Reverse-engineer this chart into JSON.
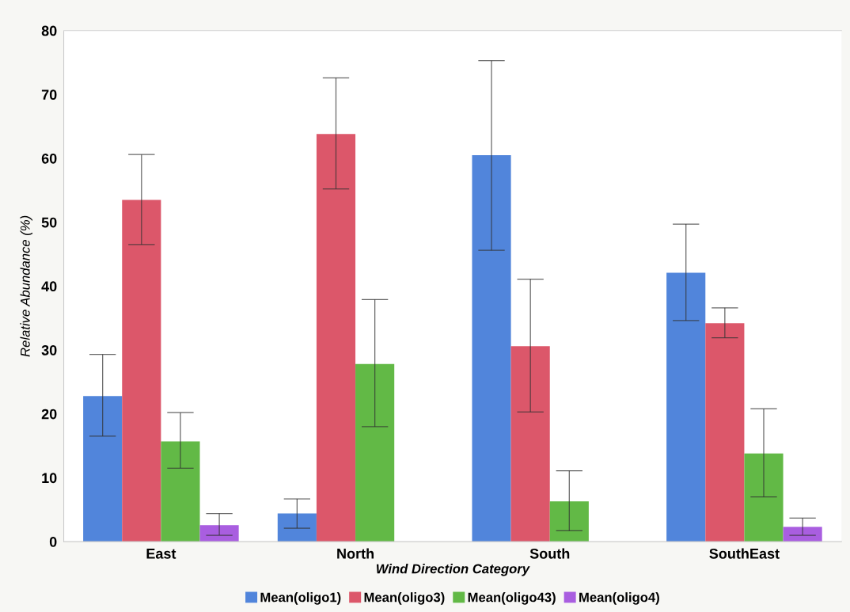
{
  "chart_data": {
    "type": "bar",
    "xlabel": "Wind Direction Category",
    "ylabel": "Relative Abundance (%)",
    "categories": [
      "East",
      "North",
      "South",
      "SouthEast"
    ],
    "series": [
      {
        "name": "Mean(oligo1)",
        "color": "#5185db",
        "values": [
          22.8,
          4.4,
          60.5,
          42.1
        ],
        "errors": [
          [
            16.5,
            29.3
          ],
          [
            2.1,
            6.7
          ],
          [
            45.6,
            75.3
          ],
          [
            34.6,
            49.7
          ]
        ]
      },
      {
        "name": "Mean(oligo3)",
        "color": "#dc576a",
        "values": [
          53.5,
          63.8,
          30.6,
          34.2
        ],
        "errors": [
          [
            46.5,
            60.6
          ],
          [
            55.2,
            72.6
          ],
          [
            20.3,
            41.1
          ],
          [
            31.9,
            36.6
          ]
        ]
      },
      {
        "name": "Mean(oligo43)",
        "color": "#62b946",
        "values": [
          15.7,
          27.8,
          6.3,
          13.8
        ],
        "errors": [
          [
            11.5,
            20.2
          ],
          [
            18.0,
            37.9
          ],
          [
            1.7,
            11.1
          ],
          [
            7.0,
            20.8
          ]
        ]
      },
      {
        "name": "Mean(oligo4)",
        "color": "#a95ee0",
        "values": [
          2.6,
          0,
          0,
          2.3
        ],
        "errors": [
          [
            1.0,
            4.4
          ],
          null,
          null,
          [
            1.0,
            3.7
          ]
        ]
      }
    ],
    "ylim": [
      0,
      80
    ],
    "yticks": [
      0,
      10,
      20,
      30,
      40,
      50,
      60,
      70,
      80
    ],
    "grid": false,
    "legend": "bottom"
  }
}
